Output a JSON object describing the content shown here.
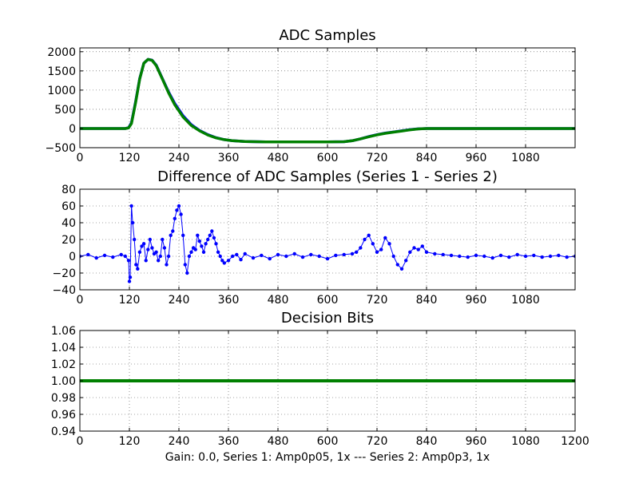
{
  "figure_xlabel": "Gain: 0.0, Series 1: Amp0p05, 1x --- Series 2: Amp0p3, 1x",
  "colors": {
    "series1": "#0000ff",
    "series2": "#008000"
  },
  "chart_data": [
    {
      "type": "line",
      "title": "ADC Samples",
      "xlabel": "",
      "ylabel": "",
      "xlim": [
        0,
        1200
      ],
      "ylim": [
        -500,
        2100
      ],
      "xticks": [
        0,
        120,
        240,
        360,
        480,
        600,
        720,
        840,
        960,
        1080
      ],
      "xtick_labels": [
        "0",
        "120",
        "240",
        "360",
        "480",
        "600",
        "720",
        "840",
        "960",
        "1080"
      ],
      "yticks": [
        -500,
        0,
        500,
        1000,
        1500,
        2000
      ],
      "ytick_labels": [
        "−500",
        "0",
        "500",
        "1000",
        "1500",
        "2000"
      ],
      "grid": true,
      "series": [
        {
          "name": "Series 1",
          "color": "#0000ff",
          "x": [
            0,
            110,
            118,
            125,
            135,
            145,
            155,
            165,
            175,
            185,
            200,
            215,
            230,
            250,
            270,
            290,
            310,
            330,
            350,
            370,
            400,
            450,
            500,
            550,
            600,
            640,
            660,
            680,
            700,
            720,
            740,
            760,
            780,
            800,
            820,
            840,
            900,
            1000,
            1100,
            1200
          ],
          "y": [
            0,
            0,
            20,
            150,
            700,
            1300,
            1700,
            1800,
            1780,
            1650,
            1300,
            950,
            650,
            330,
            100,
            -50,
            -160,
            -240,
            -290,
            -320,
            -340,
            -350,
            -350,
            -350,
            -350,
            -345,
            -320,
            -270,
            -210,
            -160,
            -120,
            -90,
            -60,
            -30,
            -10,
            0,
            0,
            0,
            0,
            0
          ]
        },
        {
          "name": "Series 2",
          "color": "#008000",
          "x": [
            0,
            110,
            118,
            125,
            135,
            145,
            155,
            165,
            175,
            185,
            200,
            215,
            230,
            250,
            270,
            290,
            310,
            330,
            350,
            370,
            400,
            450,
            500,
            550,
            600,
            640,
            660,
            680,
            700,
            720,
            740,
            760,
            780,
            800,
            820,
            840,
            900,
            1000,
            1100,
            1200
          ],
          "y": [
            0,
            0,
            15,
            130,
            680,
            1290,
            1700,
            1800,
            1775,
            1640,
            1290,
            930,
            620,
            300,
            80,
            -60,
            -170,
            -245,
            -290,
            -320,
            -340,
            -350,
            -350,
            -350,
            -350,
            -345,
            -320,
            -270,
            -215,
            -165,
            -125,
            -95,
            -65,
            -35,
            -12,
            0,
            0,
            0,
            0,
            0
          ]
        }
      ]
    },
    {
      "type": "line",
      "title": "Difference of ADC Samples (Series 1 - Series 2)",
      "xlabel": "",
      "ylabel": "",
      "xlim": [
        0,
        1200
      ],
      "ylim": [
        -40,
        80
      ],
      "xticks": [
        0,
        120,
        240,
        360,
        480,
        600,
        720,
        840,
        960,
        1080
      ],
      "xtick_labels": [
        "0",
        "120",
        "240",
        "360",
        "480",
        "600",
        "720",
        "840",
        "960",
        "1080"
      ],
      "yticks": [
        -40,
        -20,
        0,
        20,
        40,
        60,
        80
      ],
      "ytick_labels": [
        "−40",
        "−20",
        "0",
        "20",
        "40",
        "60",
        "80"
      ],
      "grid": true,
      "series": [
        {
          "name": "Series 1 - Series 2",
          "color": "#0000ff",
          "marker": "dot",
          "x": [
            0,
            20,
            40,
            60,
            80,
            100,
            110,
            118,
            120,
            122,
            125,
            128,
            132,
            136,
            140,
            145,
            150,
            155,
            160,
            165,
            170,
            175,
            180,
            185,
            190,
            195,
            200,
            205,
            210,
            215,
            220,
            225,
            230,
            235,
            240,
            245,
            250,
            255,
            260,
            265,
            270,
            275,
            280,
            285,
            290,
            295,
            300,
            305,
            310,
            315,
            320,
            325,
            330,
            335,
            340,
            345,
            350,
            360,
            370,
            380,
            390,
            400,
            420,
            440,
            460,
            480,
            500,
            520,
            540,
            560,
            580,
            600,
            620,
            640,
            660,
            670,
            680,
            690,
            700,
            710,
            720,
            730,
            740,
            750,
            760,
            770,
            780,
            790,
            800,
            810,
            820,
            830,
            840,
            860,
            880,
            900,
            920,
            940,
            960,
            980,
            1000,
            1020,
            1040,
            1060,
            1080,
            1100,
            1120,
            1140,
            1160,
            1180,
            1200
          ],
          "y": [
            0,
            2,
            -2,
            1,
            -1,
            2,
            0,
            -5,
            -30,
            -25,
            60,
            40,
            20,
            -10,
            -15,
            5,
            12,
            15,
            -5,
            8,
            20,
            10,
            3,
            5,
            -5,
            0,
            20,
            10,
            -10,
            0,
            25,
            30,
            45,
            55,
            60,
            50,
            25,
            -10,
            -20,
            0,
            5,
            10,
            8,
            25,
            18,
            12,
            5,
            15,
            20,
            25,
            30,
            22,
            15,
            5,
            0,
            -5,
            -8,
            -5,
            0,
            2,
            -4,
            3,
            -2,
            1,
            -3,
            2,
            0,
            3,
            -1,
            2,
            0,
            -3,
            1,
            2,
            3,
            5,
            10,
            20,
            25,
            15,
            5,
            8,
            22,
            15,
            0,
            -10,
            -15,
            -5,
            5,
            10,
            8,
            12,
            5,
            3,
            2,
            1,
            0,
            -1,
            1,
            0,
            -2,
            1,
            -1,
            2,
            0,
            1,
            -1,
            0,
            1,
            -1,
            0
          ]
        }
      ]
    },
    {
      "type": "line",
      "title": "Decision Bits",
      "xlabel": "Gain: 0.0, Series 1: Amp0p05, 1x --- Series 2: Amp0p3, 1x",
      "ylabel": "",
      "xlim": [
        0,
        1200
      ],
      "ylim": [
        0.94,
        1.06
      ],
      "xticks": [
        0,
        120,
        240,
        360,
        480,
        600,
        720,
        840,
        960,
        1080,
        1200
      ],
      "xtick_labels": [
        "0",
        "120",
        "240",
        "360",
        "480",
        "600",
        "720",
        "840",
        "960",
        "1080",
        "1200"
      ],
      "yticks": [
        0.94,
        0.96,
        0.98,
        1.0,
        1.02,
        1.04,
        1.06
      ],
      "ytick_labels": [
        "0.94",
        "0.96",
        "0.98",
        "1.00",
        "1.02",
        "1.04",
        "1.06"
      ],
      "grid": true,
      "series": [
        {
          "name": "Decision Bits",
          "color": "#008000",
          "x": [
            0,
            1200
          ],
          "y": [
            1.0,
            1.0
          ]
        }
      ]
    }
  ]
}
